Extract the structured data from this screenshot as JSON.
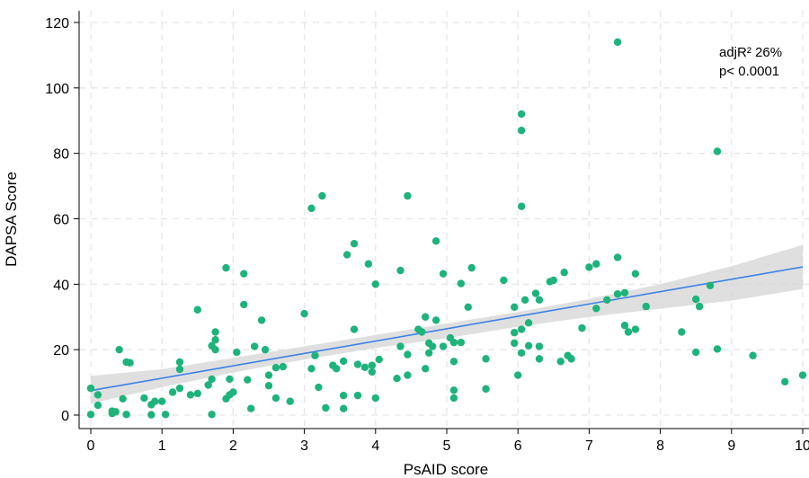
{
  "chart_data": {
    "type": "scatter",
    "xlabel": "PsAID score",
    "ylabel": "DAPSA Score",
    "xlim": [
      0,
      10
    ],
    "ylim": [
      0,
      120
    ],
    "xticks": [
      "0",
      "1",
      "2",
      "3",
      "4",
      "5",
      "6",
      "7",
      "8",
      "9",
      "10"
    ],
    "yticks": [
      "0",
      "20",
      "40",
      "60",
      "80",
      "100",
      "120"
    ],
    "grid": true,
    "annotations": [
      "adjR² 26%",
      "p< 0.0001"
    ],
    "point_color": "#1db37a",
    "fit_color": "#3b82e6",
    "band_color": "#d4d4d4",
    "fit_line": {
      "x": [
        0,
        10
      ],
      "y": [
        7.5,
        45.3
      ]
    },
    "confidence_band": {
      "x": [
        0,
        1,
        2,
        3,
        4,
        5,
        6,
        7,
        8,
        9,
        10
      ],
      "lower": [
        3.5,
        8.5,
        13.0,
        17.0,
        20.5,
        23.5,
        27.0,
        30.0,
        32.5,
        35.0,
        38.5
      ],
      "upper": [
        12.0,
        14.0,
        17.5,
        21.0,
        24.5,
        28.0,
        31.5,
        35.5,
        40.0,
        45.5,
        52.0
      ]
    },
    "points": [
      [
        0.0,
        0.2
      ],
      [
        0.0,
        8.2
      ],
      [
        0.1,
        3.0
      ],
      [
        0.1,
        6.2
      ],
      [
        0.3,
        0.5
      ],
      [
        0.3,
        1.2
      ],
      [
        0.35,
        1.0
      ],
      [
        0.4,
        20.0
      ],
      [
        0.45,
        5.0
      ],
      [
        0.5,
        0.2
      ],
      [
        0.5,
        16.2
      ],
      [
        0.55,
        16.0
      ],
      [
        0.75,
        5.2
      ],
      [
        0.85,
        3.2
      ],
      [
        0.85,
        0.1
      ],
      [
        0.9,
        4.2
      ],
      [
        1.0,
        4.2
      ],
      [
        1.05,
        0.2
      ],
      [
        1.15,
        7.0
      ],
      [
        1.25,
        16.2
      ],
      [
        1.25,
        14.0
      ],
      [
        1.25,
        8.2
      ],
      [
        1.4,
        6.2
      ],
      [
        1.5,
        32.2
      ],
      [
        1.5,
        6.6
      ],
      [
        1.65,
        9.2
      ],
      [
        1.7,
        11.0
      ],
      [
        1.7,
        21.2
      ],
      [
        1.7,
        0.2
      ],
      [
        1.75,
        25.4
      ],
      [
        1.75,
        23.0
      ],
      [
        1.75,
        20.0
      ],
      [
        1.9,
        45.0
      ],
      [
        1.9,
        5.0
      ],
      [
        1.95,
        11.0
      ],
      [
        1.95,
        6.2
      ],
      [
        2.0,
        7.0
      ],
      [
        2.05,
        19.2
      ],
      [
        2.15,
        43.2
      ],
      [
        2.15,
        33.8
      ],
      [
        2.2,
        10.8
      ],
      [
        2.25,
        2.0
      ],
      [
        2.3,
        21.0
      ],
      [
        2.4,
        29.0
      ],
      [
        2.45,
        20.0
      ],
      [
        2.5,
        12.2
      ],
      [
        2.5,
        9.0
      ],
      [
        2.6,
        5.2
      ],
      [
        2.6,
        14.5
      ],
      [
        2.7,
        14.8
      ],
      [
        2.8,
        4.2
      ],
      [
        3.0,
        31.0
      ],
      [
        3.1,
        63.2
      ],
      [
        3.1,
        14.2
      ],
      [
        3.15,
        18.2
      ],
      [
        3.2,
        8.5
      ],
      [
        3.25,
        67.0
      ],
      [
        3.3,
        2.2
      ],
      [
        3.4,
        15.2
      ],
      [
        3.45,
        14.2
      ],
      [
        3.55,
        16.5
      ],
      [
        3.55,
        6.0
      ],
      [
        3.55,
        2.0
      ],
      [
        3.6,
        49.0
      ],
      [
        3.7,
        52.4
      ],
      [
        3.7,
        26.2
      ],
      [
        3.75,
        15.5
      ],
      [
        3.75,
        6.0
      ],
      [
        3.85,
        14.6
      ],
      [
        3.9,
        46.2
      ],
      [
        3.95,
        15.2
      ],
      [
        3.95,
        13.2
      ],
      [
        4.0,
        40.0
      ],
      [
        4.0,
        5.2
      ],
      [
        4.05,
        17.0
      ],
      [
        4.3,
        11.2
      ],
      [
        4.35,
        44.2
      ],
      [
        4.35,
        21.0
      ],
      [
        4.45,
        67.0
      ],
      [
        4.45,
        12.2
      ],
      [
        4.45,
        18.5
      ],
      [
        4.6,
        26.2
      ],
      [
        4.65,
        25.4
      ],
      [
        4.7,
        30.0
      ],
      [
        4.7,
        14.2
      ],
      [
        4.75,
        19.0
      ],
      [
        4.75,
        22.0
      ],
      [
        4.8,
        21.0
      ],
      [
        4.85,
        53.2
      ],
      [
        4.85,
        29.0
      ],
      [
        4.95,
        21.0
      ],
      [
        4.95,
        43.2
      ],
      [
        5.05,
        23.6
      ],
      [
        5.1,
        16.4
      ],
      [
        5.1,
        22.2
      ],
      [
        5.1,
        7.6
      ],
      [
        5.1,
        5.2
      ],
      [
        5.2,
        22.2
      ],
      [
        5.2,
        40.2
      ],
      [
        5.3,
        33.0
      ],
      [
        5.35,
        45.0
      ],
      [
        5.55,
        17.2
      ],
      [
        5.55,
        8.0
      ],
      [
        5.8,
        41.2
      ],
      [
        5.95,
        33.0
      ],
      [
        5.95,
        25.2
      ],
      [
        5.95,
        22.0
      ],
      [
        6.0,
        12.2
      ],
      [
        6.05,
        92.0
      ],
      [
        6.05,
        87.0
      ],
      [
        6.05,
        63.8
      ],
      [
        6.05,
        26.2
      ],
      [
        6.05,
        19.0
      ],
      [
        6.1,
        35.2
      ],
      [
        6.15,
        21.2
      ],
      [
        6.15,
        28.2
      ],
      [
        6.25,
        37.2
      ],
      [
        6.3,
        35.2
      ],
      [
        6.3,
        21.0
      ],
      [
        6.3,
        17.2
      ],
      [
        6.45,
        40.8
      ],
      [
        6.5,
        41.2
      ],
      [
        6.6,
        16.4
      ],
      [
        6.65,
        43.6
      ],
      [
        6.7,
        18.2
      ],
      [
        6.75,
        17.2
      ],
      [
        6.9,
        26.6
      ],
      [
        7.0,
        45.2
      ],
      [
        7.1,
        46.2
      ],
      [
        7.1,
        32.6
      ],
      [
        7.25,
        35.2
      ],
      [
        7.4,
        114.0
      ],
      [
        7.4,
        48.2
      ],
      [
        7.4,
        37.0
      ],
      [
        7.5,
        37.4
      ],
      [
        7.5,
        27.4
      ],
      [
        7.55,
        25.4
      ],
      [
        7.65,
        43.2
      ],
      [
        7.65,
        26.2
      ],
      [
        7.8,
        33.2
      ],
      [
        8.3,
        25.4
      ],
      [
        8.5,
        35.4
      ],
      [
        8.5,
        19.2
      ],
      [
        8.55,
        33.2
      ],
      [
        8.7,
        39.6
      ],
      [
        8.8,
        80.6
      ],
      [
        8.8,
        20.2
      ],
      [
        9.3,
        18.2
      ],
      [
        9.75,
        10.2
      ],
      [
        10.0,
        12.2
      ]
    ]
  }
}
